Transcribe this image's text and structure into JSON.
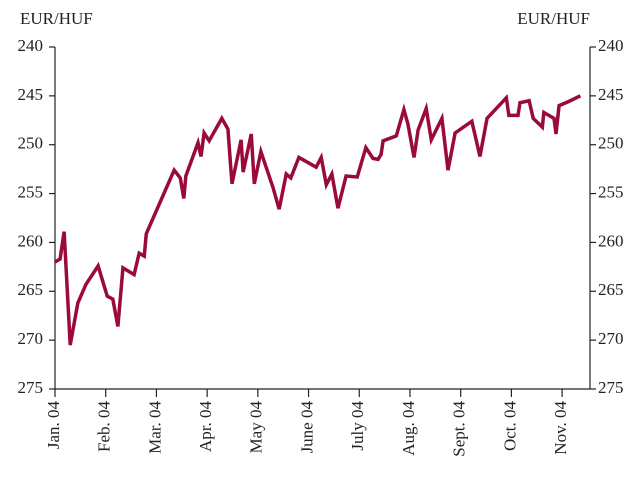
{
  "chart_data": {
    "type": "line",
    "y_label": "EUR/HUF",
    "y2_label": "EUR/HUF",
    "x": [
      0,
      0.1,
      0.18,
      0.3,
      0.45,
      0.61,
      0.85,
      1.03,
      1.14,
      1.24,
      1.34,
      1.56,
      1.66,
      1.76,
      1.8,
      2.35,
      2.47,
      2.54,
      2.58,
      2.82,
      2.88,
      2.94,
      3.04,
      3.29,
      3.41,
      3.49,
      3.67,
      3.71,
      3.87,
      3.93,
      4.06,
      4.3,
      4.42,
      4.56,
      4.65,
      4.81,
      5.15,
      5.25,
      5.35,
      5.46,
      5.58,
      5.74,
      5.96,
      6.13,
      6.27,
      6.37,
      6.43,
      6.47,
      6.73,
      6.88,
      6.96,
      7.08,
      7.16,
      7.32,
      7.42,
      7.63,
      7.75,
      7.89,
      8.22,
      8.38,
      8.52,
      8.9,
      8.95,
      9.13,
      9.17,
      9.35,
      9.43,
      9.61,
      9.64,
      9.84,
      9.88,
      9.94,
      10.12,
      10.36
    ],
    "series": [
      {
        "name": "EUR/HUF",
        "color": "#9b0a3c",
        "values": [
          262.0,
          261.7,
          258.9,
          270.5,
          266.2,
          264.3,
          262.4,
          265.5,
          265.8,
          268.6,
          262.6,
          263.3,
          261.1,
          261.4,
          259.1,
          252.6,
          253.4,
          255.5,
          253.2,
          249.8,
          251.2,
          248.8,
          249.6,
          247.3,
          248.4,
          254.0,
          249.5,
          252.8,
          248.9,
          254.0,
          250.7,
          254.4,
          256.6,
          253.0,
          253.4,
          251.3,
          252.3,
          251.3,
          254.1,
          253.0,
          256.5,
          253.2,
          253.3,
          250.3,
          251.4,
          251.5,
          251.0,
          249.6,
          249.1,
          246.4,
          247.9,
          251.3,
          248.5,
          246.3,
          249.5,
          247.3,
          252.6,
          248.8,
          247.6,
          251.2,
          247.3,
          245.2,
          247.0,
          247.0,
          245.7,
          245.5,
          247.3,
          248.2,
          246.7,
          247.3,
          248.9,
          246.0,
          245.6,
          245.0
        ]
      }
    ],
    "xlim": [
      0,
      10.55
    ],
    "xticks": [
      {
        "value": 0,
        "label": "Jan. 04"
      },
      {
        "value": 1,
        "label": "Feb. 04"
      },
      {
        "value": 2,
        "label": "Mar. 04"
      },
      {
        "value": 3,
        "label": "Apr. 04"
      },
      {
        "value": 4,
        "label": "May 04"
      },
      {
        "value": 5,
        "label": "June 04"
      },
      {
        "value": 6,
        "label": "July 04"
      },
      {
        "value": 7,
        "label": "Aug. 04"
      },
      {
        "value": 8,
        "label": "Sept. 04"
      },
      {
        "value": 9,
        "label": "Oct. 04"
      },
      {
        "value": 10,
        "label": "Nov. 04"
      }
    ],
    "ylim": [
      240,
      275
    ],
    "y_inverted": true,
    "yticks": [
      240,
      245,
      250,
      255,
      260,
      265,
      270,
      275
    ]
  }
}
